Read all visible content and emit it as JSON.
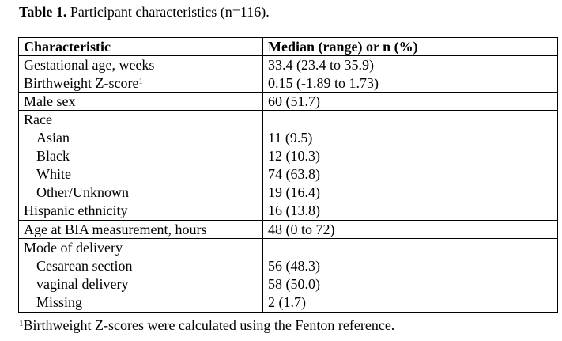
{
  "caption": {
    "label": "Table 1.",
    "text": "Participant characteristics (n=116)."
  },
  "table": {
    "headers": [
      "Characteristic",
      "Median (range) or n (%)"
    ],
    "rows": [
      {
        "characteristic": "Gestational age, weeks",
        "value": "33.4 (23.4 to 35.9)"
      },
      {
        "characteristic": "Birthweight Z-score",
        "sup": "1",
        "value": "0.15 (-1.89 to 1.73)"
      },
      {
        "characteristic": "Male sex",
        "value": "60 (51.7)"
      }
    ],
    "race": {
      "label": "Race",
      "items": [
        {
          "label": "Asian",
          "value": "11 (9.5)"
        },
        {
          "label": "Black",
          "value": "12 (10.3)"
        },
        {
          "label": "White",
          "value": "74 (63.8)"
        },
        {
          "label": "Other/Unknown",
          "value": "19 (16.4)"
        }
      ],
      "hispanic_label": "Hispanic ethnicity",
      "hispanic_value": "16 (13.8)"
    },
    "age_row": {
      "characteristic": "Age at BIA measurement, hours",
      "value": "48 (0 to 72)"
    },
    "delivery": {
      "label": "Mode of delivery",
      "items": [
        {
          "label": "Cesarean section",
          "value": "56 (48.3)"
        },
        {
          "label": "vaginal delivery",
          "value": "58 (50.0)"
        },
        {
          "label": "Missing",
          "value": "2 (1.7)"
        }
      ]
    }
  },
  "footnote": {
    "sup": "1",
    "text": "Birthweight Z-scores were calculated using the Fenton reference."
  }
}
